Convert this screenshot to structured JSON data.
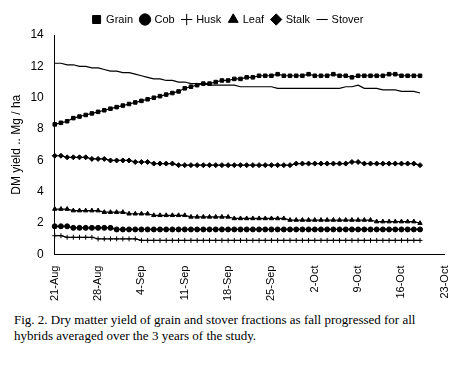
{
  "chart_data": {
    "type": "line",
    "caption": "Fig. 2. Dry matter yield of grain and stover fractions as fall progressed for all hybrids averaged over the 3 years of the study.",
    "y_label": "DM yield .. Mg / ha",
    "categories": [
      "21-Aug",
      null,
      null,
      null,
      null,
      null,
      null,
      "28-Aug",
      null,
      null,
      null,
      null,
      null,
      null,
      "4-Sep",
      null,
      null,
      null,
      null,
      null,
      null,
      "11-Sep",
      null,
      null,
      null,
      null,
      null,
      null,
      "18-Sep",
      null,
      null,
      null,
      null,
      null,
      null,
      "25-Sep",
      null,
      null,
      null,
      null,
      null,
      null,
      "2-Oct",
      null,
      null,
      null,
      null,
      null,
      null,
      "9-Oct",
      null,
      null,
      null,
      null,
      null,
      null,
      "16-Oct",
      null,
      null,
      null,
      null,
      null,
      null,
      "23-Oct"
    ],
    "ylim": [
      0,
      14
    ],
    "yticks": [
      0,
      2,
      4,
      6,
      8,
      10,
      12,
      14
    ],
    "grid": false,
    "legend": "top",
    "series": [
      {
        "name": "Grain",
        "color": "#000000",
        "marker": "square",
        "line_style": "solid",
        "values": [
          8.3,
          8.4,
          8.5,
          8.7,
          8.8,
          8.9,
          9.0,
          9.1,
          9.2,
          9.3,
          9.4,
          9.5,
          9.6,
          9.7,
          9.8,
          9.9,
          10.0,
          10.1,
          10.2,
          10.3,
          10.4,
          10.6,
          10.7,
          10.8,
          10.9,
          10.9,
          11.0,
          11.1,
          11.1,
          11.2,
          11.2,
          11.3,
          11.3,
          11.4,
          11.4,
          11.4,
          11.5,
          11.4,
          11.4,
          11.4,
          11.4,
          11.5,
          11.4,
          11.4,
          11.4,
          11.5,
          11.4,
          11.4,
          11.3,
          11.4,
          11.4,
          11.4,
          11.4,
          11.4,
          11.5,
          11.5,
          11.4,
          11.4,
          11.4,
          11.4,
          null,
          null,
          null,
          null
        ]
      },
      {
        "name": "Cob",
        "color": "#000000",
        "marker": "circle",
        "line_style": "solid",
        "values": [
          1.8,
          1.8,
          1.8,
          1.7,
          1.7,
          1.7,
          1.7,
          1.7,
          1.7,
          1.7,
          1.6,
          1.6,
          1.6,
          1.6,
          1.6,
          1.6,
          1.6,
          1.6,
          1.6,
          1.6,
          1.6,
          1.6,
          1.6,
          1.6,
          1.6,
          1.6,
          1.6,
          1.6,
          1.6,
          1.6,
          1.6,
          1.6,
          1.6,
          1.6,
          1.6,
          1.6,
          1.6,
          1.6,
          1.6,
          1.6,
          1.6,
          1.6,
          1.6,
          1.6,
          1.6,
          1.6,
          1.6,
          1.6,
          1.6,
          1.6,
          1.6,
          1.6,
          1.6,
          1.6,
          1.6,
          1.6,
          1.6,
          1.6,
          1.6,
          1.6,
          null,
          null,
          null,
          null
        ]
      },
      {
        "name": "Husk",
        "color": "#000000",
        "marker": "plus",
        "line_style": "solid",
        "values": [
          1.2,
          1.2,
          1.1,
          1.1,
          1.1,
          1.1,
          1.1,
          1.0,
          1.0,
          1.0,
          1.0,
          1.0,
          1.0,
          1.0,
          0.9,
          0.9,
          0.9,
          0.9,
          0.9,
          0.9,
          0.9,
          0.9,
          0.9,
          0.9,
          0.9,
          0.9,
          0.9,
          0.9,
          0.9,
          0.9,
          0.9,
          0.9,
          0.9,
          0.9,
          0.9,
          0.9,
          0.9,
          0.9,
          0.9,
          0.9,
          0.9,
          0.9,
          0.9,
          0.9,
          0.9,
          0.9,
          0.9,
          0.9,
          0.9,
          0.9,
          0.9,
          0.9,
          0.9,
          0.9,
          0.9,
          0.9,
          0.9,
          0.9,
          0.9,
          0.9,
          null,
          null,
          null,
          null
        ]
      },
      {
        "name": "Leaf",
        "color": "#000000",
        "marker": "triangle",
        "line_style": "solid",
        "values": [
          2.9,
          2.9,
          2.9,
          2.8,
          2.8,
          2.8,
          2.8,
          2.8,
          2.7,
          2.7,
          2.7,
          2.7,
          2.6,
          2.6,
          2.6,
          2.6,
          2.5,
          2.5,
          2.5,
          2.5,
          2.5,
          2.5,
          2.4,
          2.4,
          2.4,
          2.4,
          2.4,
          2.4,
          2.4,
          2.3,
          2.3,
          2.3,
          2.3,
          2.3,
          2.3,
          2.3,
          2.3,
          2.3,
          2.2,
          2.2,
          2.2,
          2.2,
          2.2,
          2.2,
          2.2,
          2.2,
          2.2,
          2.2,
          2.2,
          2.2,
          2.2,
          2.2,
          2.1,
          2.1,
          2.1,
          2.1,
          2.1,
          2.1,
          2.1,
          2.0,
          null,
          null,
          null,
          null
        ]
      },
      {
        "name": "Stalk",
        "color": "#000000",
        "marker": "diamond",
        "line_style": "solid",
        "values": [
          6.3,
          6.3,
          6.2,
          6.2,
          6.2,
          6.2,
          6.1,
          6.1,
          6.1,
          6.0,
          6.0,
          6.0,
          6.0,
          5.9,
          5.9,
          5.9,
          5.8,
          5.8,
          5.8,
          5.8,
          5.7,
          5.7,
          5.7,
          5.7,
          5.7,
          5.7,
          5.7,
          5.7,
          5.7,
          5.7,
          5.7,
          5.7,
          5.7,
          5.7,
          5.7,
          5.7,
          5.7,
          5.7,
          5.7,
          5.8,
          5.8,
          5.8,
          5.8,
          5.8,
          5.8,
          5.8,
          5.8,
          5.8,
          5.9,
          5.9,
          5.8,
          5.8,
          5.8,
          5.8,
          5.8,
          5.8,
          5.8,
          5.8,
          5.8,
          5.7,
          null,
          null,
          null,
          null
        ]
      },
      {
        "name": "Stover",
        "color": "#000000",
        "marker": "none",
        "line_style": "solid",
        "values": [
          12.2,
          12.2,
          12.1,
          12.1,
          12.0,
          12.0,
          11.9,
          11.9,
          11.8,
          11.7,
          11.7,
          11.6,
          11.6,
          11.5,
          11.4,
          11.3,
          11.2,
          11.2,
          11.1,
          11.1,
          11.0,
          11.0,
          10.9,
          10.9,
          10.9,
          10.8,
          10.8,
          10.8,
          10.8,
          10.8,
          10.7,
          10.7,
          10.7,
          10.7,
          10.7,
          10.7,
          10.6,
          10.6,
          10.6,
          10.6,
          10.6,
          10.6,
          10.6,
          10.6,
          10.6,
          10.6,
          10.6,
          10.7,
          10.7,
          10.8,
          10.6,
          10.6,
          10.6,
          10.5,
          10.5,
          10.5,
          10.4,
          10.4,
          10.4,
          10.3,
          null,
          null,
          null,
          null
        ]
      }
    ]
  }
}
